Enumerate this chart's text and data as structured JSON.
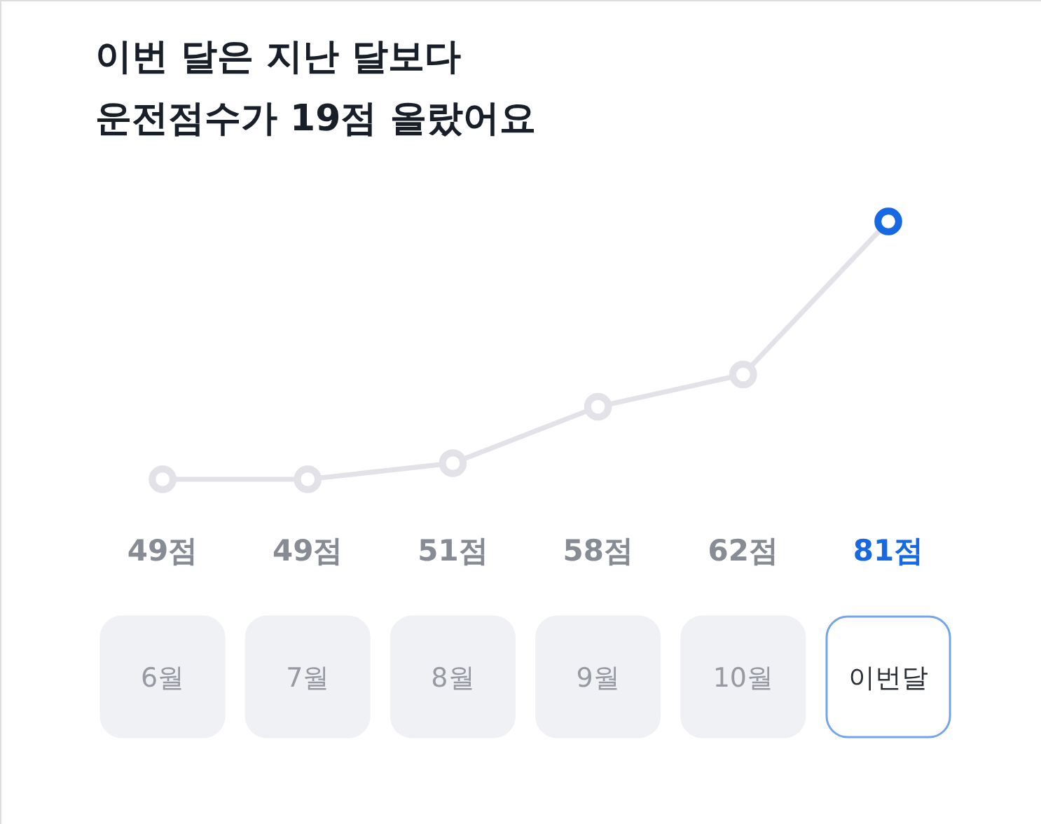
{
  "chart_data": {
    "type": "line",
    "title": "이번 달은 지난 달보다\n운전점수가 19점 올랐어요",
    "categories": [
      "6월",
      "7월",
      "8월",
      "9월",
      "10월",
      "이번달"
    ],
    "values": [
      49,
      49,
      51,
      58,
      62,
      81
    ],
    "value_labels": [
      "49점",
      "49점",
      "51점",
      "58점",
      "62점",
      "81점"
    ],
    "color": "#e2e2e8",
    "colors": [
      "#e2e2e8",
      "#e2e2e8",
      "#e2e2e8",
      "#e2e2e8",
      "#e2e2e8",
      "#1668e3"
    ],
    "marker": "circle",
    "line_style": "solid"
  }
}
